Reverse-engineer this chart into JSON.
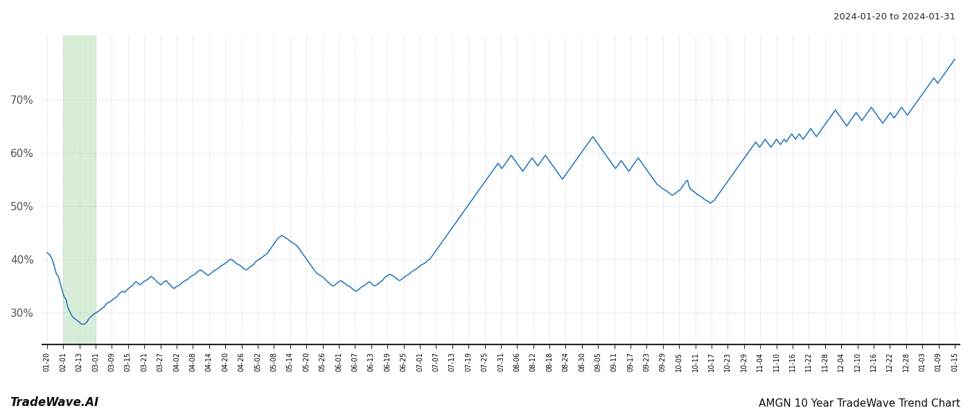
{
  "title_top_right": "2024-01-20 to 2024-01-31",
  "title_bottom_right": "AMGN 10 Year TradeWave Trend Chart",
  "title_bottom_left": "TradeWave.AI",
  "highlight_color": "#d8edd8",
  "line_color": "#1a6fbe",
  "line_width": 1.1,
  "grid_color": "#bbbbbb",
  "background_color": "#ffffff",
  "y_ticks": [
    30,
    40,
    50,
    60,
    70
  ],
  "y_min": 24,
  "y_max": 82,
  "x_labels": [
    "01-20",
    "02-01",
    "02-13",
    "03-01",
    "03-09",
    "03-15",
    "03-21",
    "03-27",
    "04-02",
    "04-08",
    "04-14",
    "04-20",
    "04-26",
    "05-02",
    "05-08",
    "05-14",
    "05-20",
    "05-26",
    "06-01",
    "06-07",
    "06-13",
    "06-19",
    "06-25",
    "07-01",
    "07-07",
    "07-13",
    "07-19",
    "07-25",
    "07-31",
    "08-06",
    "08-12",
    "08-18",
    "08-24",
    "08-30",
    "09-05",
    "09-11",
    "09-17",
    "09-23",
    "09-29",
    "10-05",
    "10-11",
    "10-17",
    "10-23",
    "10-29",
    "11-04",
    "11-10",
    "11-16",
    "11-22",
    "11-28",
    "12-04",
    "12-10",
    "12-16",
    "12-22",
    "12-28",
    "01-03",
    "01-09",
    "01-15"
  ],
  "highlight_start_label": "01-26",
  "highlight_end_label": "02-07",
  "values": [
    41.2,
    41.0,
    40.5,
    39.8,
    38.5,
    37.2,
    36.8,
    35.5,
    34.2,
    33.0,
    32.5,
    31.0,
    30.2,
    29.5,
    29.0,
    28.8,
    28.5,
    28.2,
    27.9,
    27.8,
    27.9,
    28.2,
    28.8,
    29.2,
    29.5,
    29.8,
    30.0,
    30.2,
    30.5,
    30.8,
    31.0,
    31.5,
    31.8,
    32.0,
    32.2,
    32.5,
    32.8,
    33.0,
    33.5,
    33.8,
    34.0,
    33.8,
    34.2,
    34.5,
    34.8,
    35.0,
    35.5,
    35.8,
    35.5,
    35.2,
    35.5,
    35.8,
    36.0,
    36.2,
    36.5,
    36.8,
    36.5,
    36.2,
    35.8,
    35.5,
    35.2,
    35.5,
    35.8,
    36.0,
    35.5,
    35.2,
    34.8,
    34.5,
    34.8,
    35.0,
    35.2,
    35.5,
    35.8,
    36.0,
    36.2,
    36.5,
    36.8,
    37.0,
    37.2,
    37.5,
    37.8,
    38.0,
    37.8,
    37.5,
    37.2,
    37.0,
    37.2,
    37.5,
    37.8,
    38.0,
    38.2,
    38.5,
    38.8,
    39.0,
    39.2,
    39.5,
    39.8,
    40.0,
    39.8,
    39.5,
    39.2,
    39.0,
    38.8,
    38.5,
    38.2,
    38.0,
    38.2,
    38.5,
    38.8,
    39.0,
    39.5,
    39.8,
    40.0,
    40.2,
    40.5,
    40.8,
    41.0,
    41.5,
    42.0,
    42.5,
    43.0,
    43.5,
    44.0,
    44.2,
    44.5,
    44.2,
    44.0,
    43.8,
    43.5,
    43.2,
    43.0,
    42.8,
    42.5,
    42.0,
    41.5,
    41.0,
    40.5,
    40.0,
    39.5,
    39.0,
    38.5,
    38.0,
    37.5,
    37.2,
    37.0,
    36.8,
    36.5,
    36.2,
    35.8,
    35.5,
    35.2,
    35.0,
    35.2,
    35.5,
    35.8,
    36.0,
    35.8,
    35.5,
    35.2,
    35.0,
    34.8,
    34.5,
    34.2,
    34.0,
    34.2,
    34.5,
    34.8,
    35.0,
    35.2,
    35.5,
    35.8,
    35.5,
    35.2,
    35.0,
    35.2,
    35.5,
    35.8,
    36.0,
    36.5,
    36.8,
    37.0,
    37.2,
    37.0,
    36.8,
    36.5,
    36.2,
    36.0,
    36.2,
    36.5,
    36.8,
    37.0,
    37.2,
    37.5,
    37.8,
    38.0,
    38.2,
    38.5,
    38.8,
    39.0,
    39.2,
    39.5,
    39.8,
    40.0,
    40.5,
    41.0,
    41.5,
    42.0,
    42.5,
    43.0,
    43.5,
    44.0,
    44.5,
    45.0,
    45.5,
    46.0,
    46.5,
    47.0,
    47.5,
    48.0,
    48.5,
    49.0,
    49.5,
    50.0,
    50.5,
    51.0,
    51.5,
    52.0,
    52.5,
    53.0,
    53.5,
    54.0,
    54.5,
    55.0,
    55.5,
    56.0,
    56.5,
    57.0,
    57.5,
    58.0,
    57.5,
    57.0,
    57.5,
    58.0,
    58.5,
    59.0,
    59.5,
    59.0,
    58.5,
    58.0,
    57.5,
    57.0,
    56.5,
    57.0,
    57.5,
    58.0,
    58.5,
    59.0,
    58.5,
    58.0,
    57.5,
    58.0,
    58.5,
    59.0,
    59.5,
    59.0,
    58.5,
    58.0,
    57.5,
    57.0,
    56.5,
    56.0,
    55.5,
    55.0,
    55.5,
    56.0,
    56.5,
    57.0,
    57.5,
    58.0,
    58.5,
    59.0,
    59.5,
    60.0,
    60.5,
    61.0,
    61.5,
    62.0,
    62.5,
    63.0,
    62.5,
    62.0,
    61.5,
    61.0,
    60.5,
    60.0,
    59.5,
    59.0,
    58.5,
    58.0,
    57.5,
    57.0,
    57.5,
    58.0,
    58.5,
    58.0,
    57.5,
    57.0,
    56.5,
    57.0,
    57.5,
    58.0,
    58.5,
    59.0,
    58.5,
    58.0,
    57.5,
    57.0,
    56.5,
    56.0,
    55.5,
    55.0,
    54.5,
    54.0,
    53.8,
    53.5,
    53.2,
    53.0,
    52.8,
    52.5,
    52.2,
    52.0,
    52.2,
    52.5,
    52.8,
    53.0,
    53.5,
    54.0,
    54.5,
    54.8,
    53.5,
    53.0,
    52.8,
    52.5,
    52.2,
    52.0,
    51.8,
    51.5,
    51.2,
    51.0,
    50.8,
    50.5,
    50.8,
    51.0,
    51.5,
    52.0,
    52.5,
    53.0,
    53.5,
    54.0,
    54.5,
    55.0,
    55.5,
    56.0,
    56.5,
    57.0,
    57.5,
    58.0,
    58.5,
    59.0,
    59.5,
    60.0,
    60.5,
    61.0,
    61.5,
    62.0,
    61.5,
    61.0,
    61.5,
    62.0,
    62.5,
    62.0,
    61.5,
    61.0,
    61.5,
    62.0,
    62.5,
    62.0,
    61.5,
    62.0,
    62.5,
    62.0,
    62.5,
    63.0,
    63.5,
    63.0,
    62.5,
    63.0,
    63.5,
    63.0,
    62.5,
    63.0,
    63.5,
    64.0,
    64.5,
    64.0,
    63.5,
    63.0,
    63.5,
    64.0,
    64.5,
    65.0,
    65.5,
    66.0,
    66.5,
    67.0,
    67.5,
    68.0,
    67.5,
    67.0,
    66.5,
    66.0,
    65.5,
    65.0,
    65.5,
    66.0,
    66.5,
    67.0,
    67.5,
    67.0,
    66.5,
    66.0,
    66.5,
    67.0,
    67.5,
    68.0,
    68.5,
    68.0,
    67.5,
    67.0,
    66.5,
    66.0,
    65.5,
    66.0,
    66.5,
    67.0,
    67.5,
    67.0,
    66.5,
    67.0,
    67.5,
    68.0,
    68.5,
    68.0,
    67.5,
    67.0,
    67.5,
    68.0,
    68.5,
    69.0,
    69.5,
    70.0,
    70.5,
    71.0,
    71.5,
    72.0,
    72.5,
    73.0,
    73.5,
    74.0,
    73.5,
    73.0,
    73.5,
    74.0,
    74.5,
    75.0,
    75.5,
    76.0,
    76.5,
    77.0,
    77.5
  ]
}
